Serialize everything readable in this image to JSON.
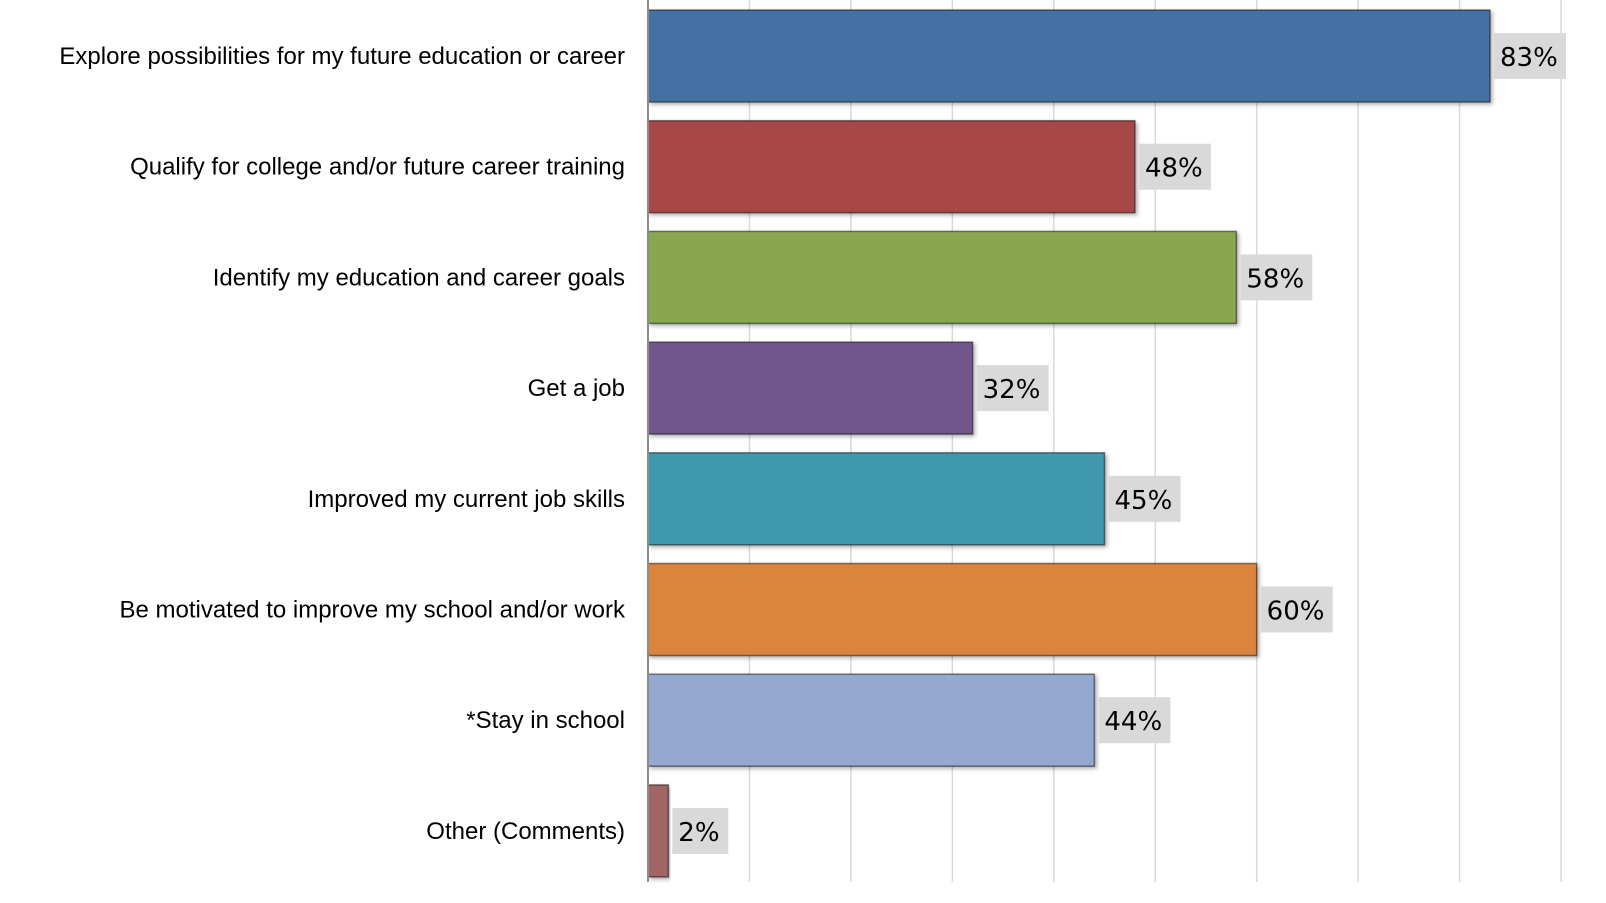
{
  "chart_data": {
    "type": "bar",
    "orientation": "horizontal",
    "categories": [
      "Explore possibilities for my future education or career",
      "Qualify for college and/or future career training",
      "Identify my education and career goals",
      "Get a job",
      "Improved my current job skills",
      "Be motivated to improve my school and/or work",
      "*Stay in school",
      "Other (Comments)"
    ],
    "values": [
      83,
      48,
      58,
      32,
      45,
      60,
      44,
      2
    ],
    "value_labels": [
      "83%",
      "48%",
      "58%",
      "32%",
      "45%",
      "60%",
      "44%",
      "2%"
    ],
    "bar_colors": [
      "#4470A4",
      "#A84646",
      "#88A750",
      "#71578C",
      "#4198AF",
      "#DB843E",
      "#93A9D0",
      "#A06565"
    ],
    "xlim": [
      0,
      90
    ],
    "grid": true,
    "title": "",
    "xlabel": "",
    "ylabel": ""
  }
}
